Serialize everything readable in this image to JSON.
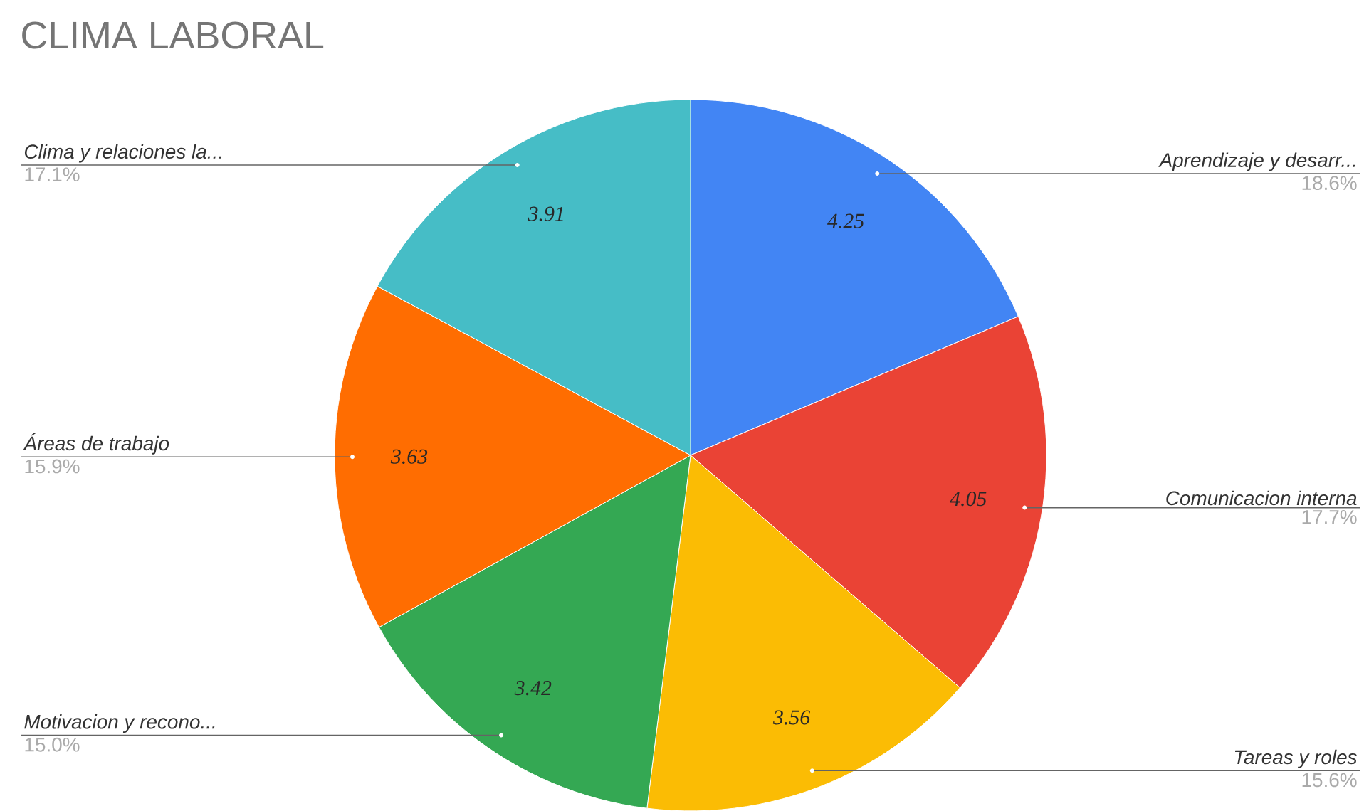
{
  "chart_data": {
    "type": "pie",
    "title": "CLIMA LABORAL",
    "categories": [
      "Aprendizaje y desarr...",
      "Comunicacion interna",
      "Tareas y roles",
      "Motivacion y recono...",
      "Áreas de trabajo",
      "Clima y relaciones la..."
    ],
    "values": [
      18.6,
      17.7,
      15.6,
      15.0,
      15.9,
      17.1
    ],
    "annotations": [
      "4.25",
      "4.05",
      "3.56",
      "3.42",
      "3.63",
      "3.91"
    ],
    "colors": [
      "#4285f4",
      "#ea4335",
      "#fbbc04",
      "#34a853",
      "#ff6d01",
      "#46bdc6"
    ],
    "value_labels": [
      "18.6%",
      "17.7%",
      "15.6%",
      "15.0%",
      "15.9%",
      "17.1%"
    ]
  }
}
